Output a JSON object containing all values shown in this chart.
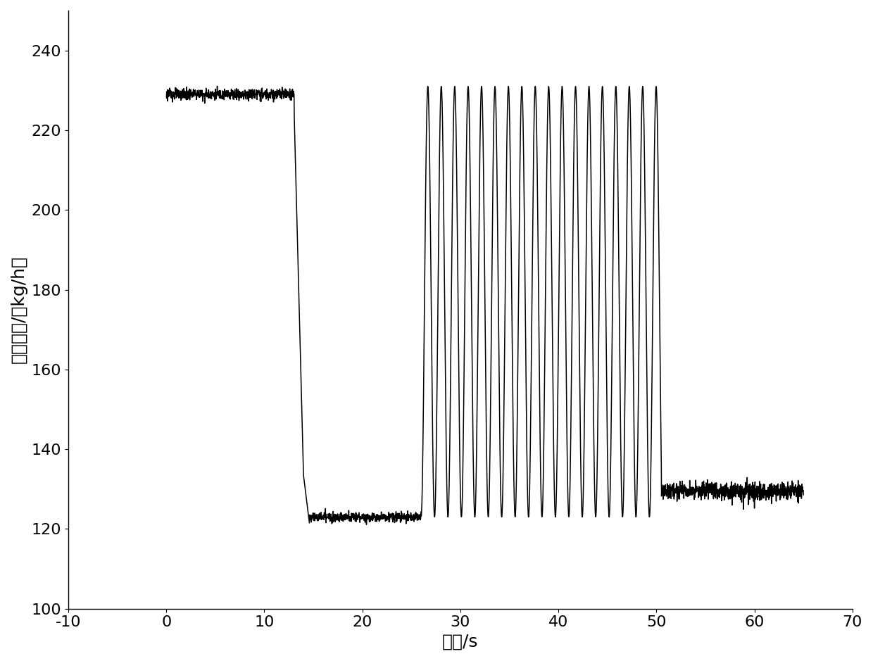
{
  "title": "",
  "xlabel": "时间/s",
  "ylabel": "质量流量/（kg/h）",
  "xlim": [
    -10,
    70
  ],
  "ylim": [
    100,
    250
  ],
  "xticks": [
    -10,
    0,
    10,
    20,
    30,
    40,
    50,
    60,
    70
  ],
  "yticks": [
    100,
    120,
    140,
    160,
    180,
    200,
    220,
    240
  ],
  "line_color": "#000000",
  "line_width": 1.1,
  "background_color": "#ffffff",
  "flat1_y": 229.0,
  "flat1_noise": 0.7,
  "flat1_x_start": 0.0,
  "flat1_x_end": 13.0,
  "drop_x_start": 13.0,
  "drop_x_dip": 14.8,
  "drop_dip_y": 133.5,
  "drop_x_low": 15.5,
  "drop_low_y": 121.5,
  "drop_bounce_x": 15.9,
  "drop_bounce_y": 125.5,
  "flat2_x_start": 14.6,
  "flat2_x_end": 26.0,
  "flat2_y": 123.0,
  "flat2_noise": 0.6,
  "osc_x_start": 26.0,
  "osc_x_end": 50.5,
  "osc_y_low": 123.0,
  "osc_y_high": 231.0,
  "osc_freq": 0.73,
  "flat3_x_start": 50.5,
  "flat3_x_end": 65.0,
  "flat3_y": 129.5,
  "flat3_noise": 1.2,
  "xlabel_fontsize": 18,
  "ylabel_fontsize": 18,
  "tick_fontsize": 16
}
